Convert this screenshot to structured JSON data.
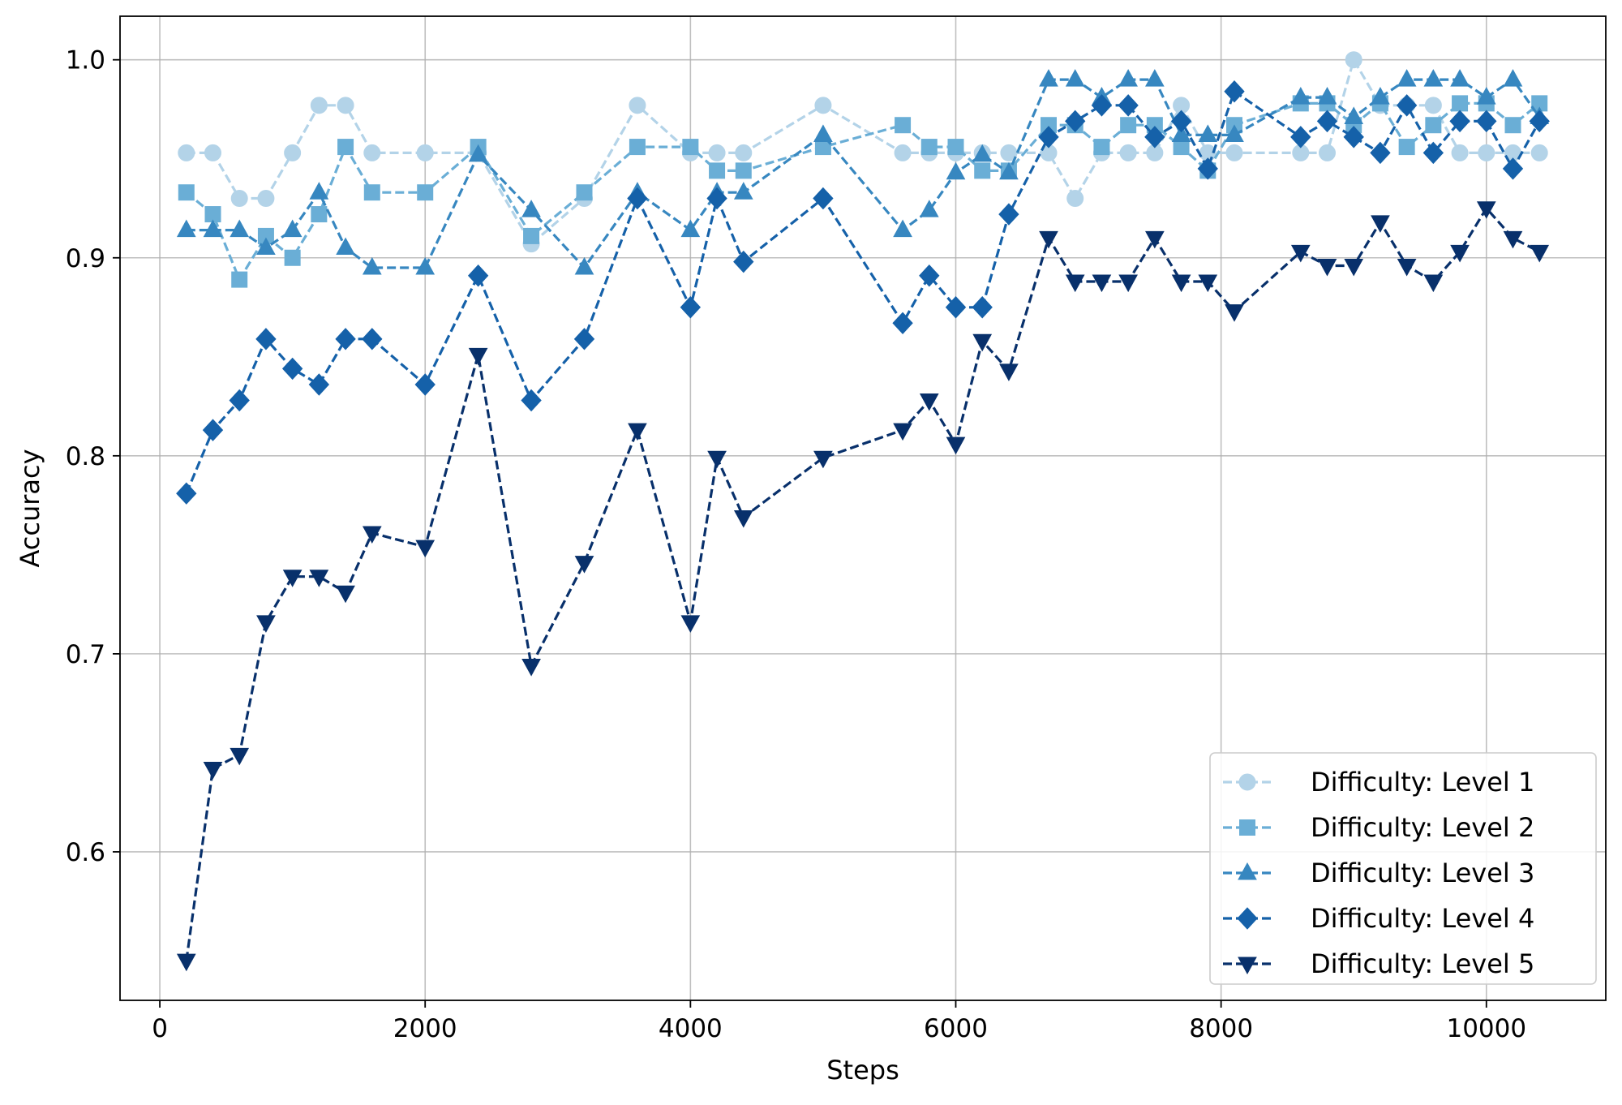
{
  "chart_data": {
    "type": "line",
    "title": "",
    "xlabel": "Steps",
    "ylabel": "Accuracy",
    "xlim": [
      -300,
      10900
    ],
    "ylim": [
      0.525,
      1.022
    ],
    "xticks": [
      0,
      2000,
      4000,
      6000,
      8000,
      10000
    ],
    "yticks": [
      0.6,
      0.7,
      0.8,
      0.9,
      1.0
    ],
    "xtick_labels": [
      "0",
      "2000",
      "4000",
      "6000",
      "8000",
      "10000"
    ],
    "ytick_labels": [
      "0.6",
      "0.7",
      "0.8",
      "0.9",
      "1.0"
    ],
    "grid": true,
    "legend_position": "lower-right",
    "series": [
      {
        "name": "Difficulty: Level 1",
        "color": "#b3d3e8",
        "marker": "circle",
        "points": [
          [
            200,
            0.953
          ],
          [
            400,
            0.953
          ],
          [
            600,
            0.93
          ],
          [
            800,
            0.93
          ],
          [
            1000,
            0.953
          ],
          [
            1200,
            0.977
          ],
          [
            1400,
            0.977
          ],
          [
            1600,
            0.953
          ],
          [
            2000,
            0.953
          ],
          [
            2400,
            0.953
          ],
          [
            2800,
            0.907
          ],
          [
            3200,
            0.93
          ],
          [
            3600,
            0.977
          ],
          [
            4000,
            0.953
          ],
          [
            4200,
            0.953
          ],
          [
            4400,
            0.953
          ],
          [
            5000,
            0.977
          ],
          [
            5600,
            0.953
          ],
          [
            5800,
            0.953
          ],
          [
            6000,
            0.953
          ],
          [
            6200,
            0.953
          ],
          [
            6400,
            0.953
          ],
          [
            6700,
            0.953
          ],
          [
            6900,
            0.93
          ],
          [
            7100,
            0.953
          ],
          [
            7300,
            0.953
          ],
          [
            7500,
            0.953
          ],
          [
            7700,
            0.977
          ],
          [
            7900,
            0.953
          ],
          [
            8100,
            0.953
          ],
          [
            8600,
            0.953
          ],
          [
            8800,
            0.953
          ],
          [
            9000,
            1.0
          ],
          [
            9200,
            0.977
          ],
          [
            9400,
            0.977
          ],
          [
            9600,
            0.977
          ],
          [
            9800,
            0.953
          ],
          [
            10000,
            0.953
          ],
          [
            10200,
            0.953
          ],
          [
            10400,
            0.953
          ]
        ]
      },
      {
        "name": "Difficulty: Level 2",
        "color": "#6aaed6",
        "marker": "square",
        "points": [
          [
            200,
            0.933
          ],
          [
            400,
            0.922
          ],
          [
            600,
            0.889
          ],
          [
            800,
            0.911
          ],
          [
            1000,
            0.9
          ],
          [
            1200,
            0.922
          ],
          [
            1400,
            0.956
          ],
          [
            1600,
            0.933
          ],
          [
            2000,
            0.933
          ],
          [
            2400,
            0.956
          ],
          [
            2800,
            0.911
          ],
          [
            3200,
            0.933
          ],
          [
            3600,
            0.956
          ],
          [
            4000,
            0.956
          ],
          [
            4200,
            0.944
          ],
          [
            4400,
            0.944
          ],
          [
            5000,
            0.956
          ],
          [
            5600,
            0.967
          ],
          [
            5800,
            0.956
          ],
          [
            6000,
            0.956
          ],
          [
            6200,
            0.944
          ],
          [
            6400,
            0.944
          ],
          [
            6700,
            0.967
          ],
          [
            6900,
            0.967
          ],
          [
            7100,
            0.956
          ],
          [
            7300,
            0.967
          ],
          [
            7500,
            0.967
          ],
          [
            7700,
            0.956
          ],
          [
            7900,
            0.944
          ],
          [
            8100,
            0.967
          ],
          [
            8600,
            0.978
          ],
          [
            8800,
            0.978
          ],
          [
            9000,
            0.967
          ],
          [
            9200,
            0.978
          ],
          [
            9400,
            0.956
          ],
          [
            9600,
            0.967
          ],
          [
            9800,
            0.978
          ],
          [
            10000,
            0.978
          ],
          [
            10200,
            0.967
          ],
          [
            10400,
            0.978
          ]
        ]
      },
      {
        "name": "Difficulty: Level 3",
        "color": "#3787c0",
        "marker": "triangle-up",
        "points": [
          [
            200,
            0.914
          ],
          [
            400,
            0.914
          ],
          [
            600,
            0.914
          ],
          [
            800,
            0.905
          ],
          [
            1000,
            0.914
          ],
          [
            1200,
            0.933
          ],
          [
            1400,
            0.905
          ],
          [
            1600,
            0.895
          ],
          [
            2000,
            0.895
          ],
          [
            2400,
            0.952
          ],
          [
            2800,
            0.924
          ],
          [
            3200,
            0.895
          ],
          [
            3600,
            0.933
          ],
          [
            4000,
            0.914
          ],
          [
            4200,
            0.933
          ],
          [
            4400,
            0.933
          ],
          [
            5000,
            0.962
          ],
          [
            5600,
            0.914
          ],
          [
            5800,
            0.924
          ],
          [
            6000,
            0.943
          ],
          [
            6200,
            0.952
          ],
          [
            6400,
            0.943
          ],
          [
            6700,
            0.99
          ],
          [
            6900,
            0.99
          ],
          [
            7100,
            0.981
          ],
          [
            7300,
            0.99
          ],
          [
            7500,
            0.99
          ],
          [
            7700,
            0.962
          ],
          [
            7900,
            0.962
          ],
          [
            8100,
            0.962
          ],
          [
            8600,
            0.981
          ],
          [
            8800,
            0.981
          ],
          [
            9000,
            0.971
          ],
          [
            9200,
            0.981
          ],
          [
            9400,
            0.99
          ],
          [
            9600,
            0.99
          ],
          [
            9800,
            0.99
          ],
          [
            10000,
            0.981
          ],
          [
            10200,
            0.99
          ],
          [
            10400,
            0.971
          ]
        ]
      },
      {
        "name": "Difficulty: Level 4",
        "color": "#1561a9",
        "marker": "diamond",
        "points": [
          [
            200,
            0.781
          ],
          [
            400,
            0.813
          ],
          [
            600,
            0.828
          ],
          [
            800,
            0.859
          ],
          [
            1000,
            0.844
          ],
          [
            1200,
            0.836
          ],
          [
            1400,
            0.859
          ],
          [
            1600,
            0.859
          ],
          [
            2000,
            0.836
          ],
          [
            2400,
            0.891
          ],
          [
            2800,
            0.828
          ],
          [
            3200,
            0.859
          ],
          [
            3600,
            0.93
          ],
          [
            4000,
            0.875
          ],
          [
            4200,
            0.93
          ],
          [
            4400,
            0.898
          ],
          [
            5000,
            0.93
          ],
          [
            5600,
            0.867
          ],
          [
            5800,
            0.891
          ],
          [
            6000,
            0.875
          ],
          [
            6200,
            0.875
          ],
          [
            6400,
            0.922
          ],
          [
            6700,
            0.961
          ],
          [
            6900,
            0.969
          ],
          [
            7100,
            0.977
          ],
          [
            7300,
            0.977
          ],
          [
            7500,
            0.961
          ],
          [
            7700,
            0.969
          ],
          [
            7900,
            0.945
          ],
          [
            8100,
            0.984
          ],
          [
            8600,
            0.961
          ],
          [
            8800,
            0.969
          ],
          [
            9000,
            0.961
          ],
          [
            9200,
            0.953
          ],
          [
            9400,
            0.977
          ],
          [
            9600,
            0.953
          ],
          [
            9800,
            0.969
          ],
          [
            10000,
            0.969
          ],
          [
            10200,
            0.945
          ],
          [
            10400,
            0.969
          ]
        ]
      },
      {
        "name": "Difficulty: Level 5",
        "color": "#08306b",
        "marker": "triangle-down",
        "points": [
          [
            200,
            0.545
          ],
          [
            400,
            0.642
          ],
          [
            600,
            0.649
          ],
          [
            800,
            0.716
          ],
          [
            1000,
            0.739
          ],
          [
            1200,
            0.739
          ],
          [
            1400,
            0.731
          ],
          [
            1600,
            0.761
          ],
          [
            2000,
            0.754
          ],
          [
            2400,
            0.851
          ],
          [
            2800,
            0.694
          ],
          [
            3200,
            0.746
          ],
          [
            3600,
            0.813
          ],
          [
            4000,
            0.716
          ],
          [
            4200,
            0.799
          ],
          [
            4400,
            0.769
          ],
          [
            5000,
            0.799
          ],
          [
            5600,
            0.813
          ],
          [
            5800,
            0.828
          ],
          [
            6000,
            0.806
          ],
          [
            6200,
            0.858
          ],
          [
            6400,
            0.843
          ],
          [
            6700,
            0.91
          ],
          [
            6900,
            0.888
          ],
          [
            7100,
            0.888
          ],
          [
            7300,
            0.888
          ],
          [
            7500,
            0.91
          ],
          [
            7700,
            0.888
          ],
          [
            7900,
            0.888
          ],
          [
            8100,
            0.873
          ],
          [
            8600,
            0.903
          ],
          [
            8800,
            0.896
          ],
          [
            9000,
            0.896
          ],
          [
            9200,
            0.918
          ],
          [
            9400,
            0.896
          ],
          [
            9600,
            0.888
          ],
          [
            9800,
            0.903
          ],
          [
            10000,
            0.925
          ],
          [
            10200,
            0.91
          ],
          [
            10400,
            0.903
          ]
        ]
      }
    ]
  }
}
